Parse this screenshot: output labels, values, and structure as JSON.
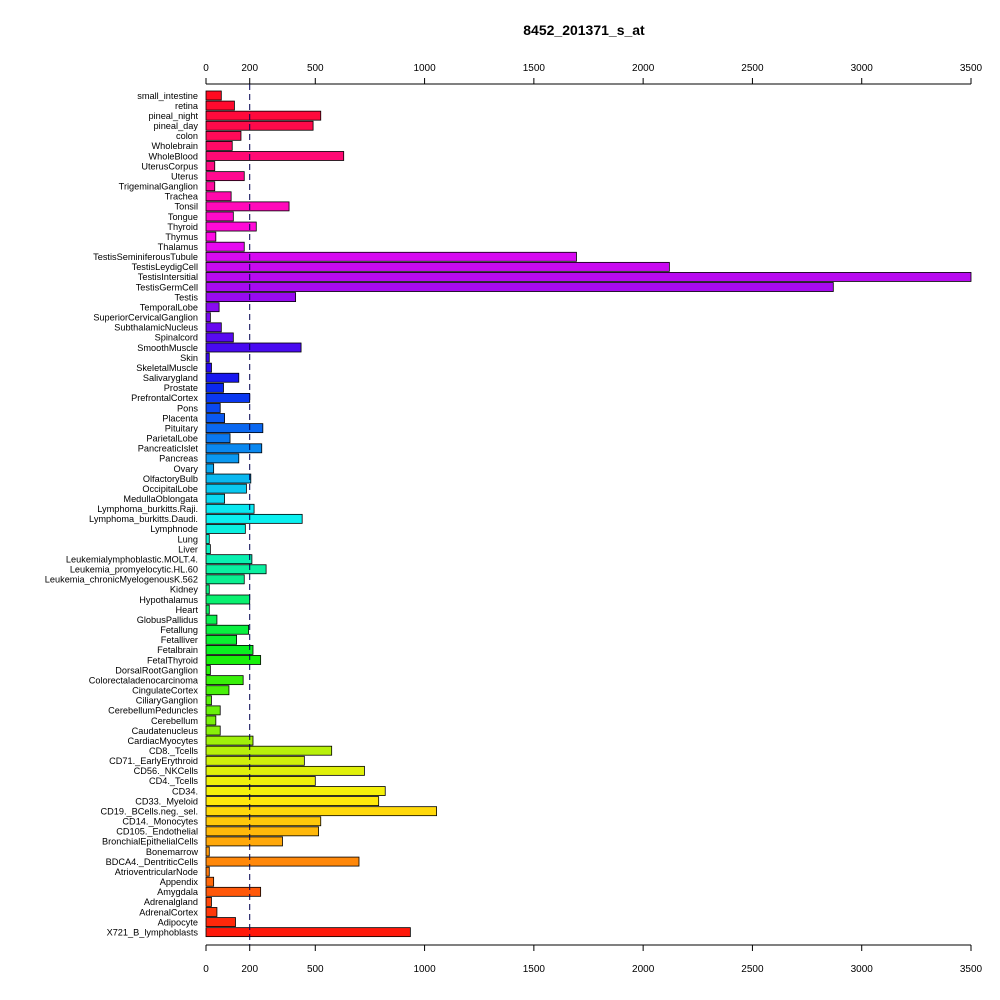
{
  "chart_data": {
    "type": "bar",
    "orientation": "horizontal",
    "title": "8452_201371_s_at",
    "xlim": [
      0,
      3500
    ],
    "ticks": [
      0,
      200,
      500,
      1000,
      1500,
      2000,
      2500,
      3000,
      3500
    ],
    "tick_labels": [
      "0",
      "200",
      "500",
      "1000",
      "1500",
      "2000",
      "2500",
      "3000",
      "3500"
    ],
    "reference_line": 200,
    "categories": [
      "small_intestine",
      "retina",
      "pineal_night",
      "pineal_day",
      "colon",
      "Wholebrain",
      "WholeBlood",
      "UterusCorpus",
      "Uterus",
      "TrigeminalGanglion",
      "Trachea",
      "Tonsil",
      "Tongue",
      "Thyroid",
      "Thymus",
      "Thalamus",
      "TestisSeminiferousTubule",
      "TestisLeydigCell",
      "TestisIntersitial",
      "TestisGermCell",
      "Testis",
      "TemporalLobe",
      "SuperiorCervicalGanglion",
      "SubthalamicNucleus",
      "Spinalcord",
      "SmoothMuscle",
      "Skin",
      "SkeletalMuscle",
      "Salivarygland",
      "Prostate",
      "PrefrontalCortex",
      "Pons",
      "Placenta",
      "Pituitary",
      "ParietalLobe",
      "PancreaticIslet",
      "Pancreas",
      "Ovary",
      "OlfactoryBulb",
      "OccipitalLobe",
      "MedullaOblongata",
      "Lymphoma_burkitts.Raji.",
      "Lymphoma_burkitts.Daudi.",
      "Lymphnode",
      "Lung",
      "Liver",
      "Leukemialymphoblastic.MOLT.4.",
      "Leukemia_promyelocytic.HL.60",
      "Leukemia_chronicMyelogenousK.562",
      "Kidney",
      "Hypothalamus",
      "Heart",
      "GlobusPallidus",
      "Fetallung",
      "Fetalliver",
      "Fetalbrain",
      "FetalThyroid",
      "DorsalRootGanglion",
      "Colorectaladenocarcinoma",
      "CingulateCortex",
      "CiliaryGanglion",
      "CerebellumPeduncles",
      "Cerebellum",
      "Caudatenucleus",
      "CardiacMyocytes",
      "CD8._Tcells",
      "CD71._EarlyErythroid",
      "CD56._NKCells",
      "CD4._Tcells",
      "CD34.",
      "CD33._Myeloid",
      "CD19._BCells.neg._sel.",
      "CD14._Monocytes",
      "CD105._Endothelial",
      "BronchialEpithelialCells",
      "Bonemarrow",
      "BDCA4._DentriticCells",
      "AtrioventricularNode",
      "Appendix",
      "Amygdala",
      "Adrenalgland",
      "AdrenalCortex",
      "Adipocyte",
      "X721_B_lymphoblasts"
    ],
    "values": [
      70,
      130,
      525,
      490,
      160,
      120,
      630,
      40,
      175,
      40,
      115,
      380,
      125,
      230,
      45,
      175,
      1695,
      2120,
      3505,
      2870,
      410,
      60,
      20,
      70,
      125,
      435,
      15,
      25,
      150,
      80,
      200,
      65,
      85,
      260,
      110,
      255,
      150,
      35,
      205,
      185,
      85,
      220,
      440,
      180,
      15,
      20,
      210,
      275,
      175,
      15,
      200,
      15,
      50,
      195,
      140,
      215,
      250,
      20,
      170,
      105,
      25,
      65,
      45,
      65,
      215,
      575,
      450,
      725,
      500,
      820,
      790,
      1055,
      525,
      515,
      350,
      15,
      700,
      15,
      35,
      250,
      25,
      50,
      135,
      935
    ],
    "colors": [
      "#FF0A20",
      "#FF0A2E",
      "#FF0A3C",
      "#FF0A4A",
      "#FF0A58",
      "#FF0A66",
      "#FF0A74",
      "#FF0A82",
      "#FF0A90",
      "#FF0A9E",
      "#FF0AAC",
      "#FF0ABA",
      "#FF0AC8",
      "#FF0AD6",
      "#FF0AE4",
      "#E60AF0",
      "#D60AF0",
      "#C80AF0",
      "#B80AF0",
      "#A80AF0",
      "#980AF0",
      "#880AF0",
      "#780AF0",
      "#680AF0",
      "#580AF0",
      "#480AF0",
      "#380AF0",
      "#280AF0",
      "#1818F0",
      "#0A28F0",
      "#0A38F0",
      "#0A48F0",
      "#0A58F0",
      "#0A68F0",
      "#0A78F0",
      "#0A88F0",
      "#0A98F0",
      "#0AA8F0",
      "#0AB8F0",
      "#0AC8F0",
      "#0AD8F0",
      "#0AE8F0",
      "#0AF0F0",
      "#0AF0E0",
      "#0AF0D0",
      "#0AF0C0",
      "#0AF0B0",
      "#0AF0A0",
      "#0AF090",
      "#0AF080",
      "#0AF070",
      "#0AF060",
      "#0AF050",
      "#0AF040",
      "#0AF030",
      "#0AF020",
      "#18F00A",
      "#28F00A",
      "#38F00A",
      "#48F00A",
      "#58F00A",
      "#68F00A",
      "#78F00A",
      "#88F00A",
      "#A0F00A",
      "#B8F00A",
      "#D0F00A",
      "#E0F00A",
      "#F0F00A",
      "#F5F00A",
      "#FFE80A",
      "#FFD80A",
      "#FFC80A",
      "#FFB80A",
      "#FFA80A",
      "#FF980A",
      "#FF880A",
      "#FF780A",
      "#FF680A",
      "#FF580A",
      "#FF480A",
      "#FF380A",
      "#FF280A",
      "#FF180A"
    ]
  }
}
